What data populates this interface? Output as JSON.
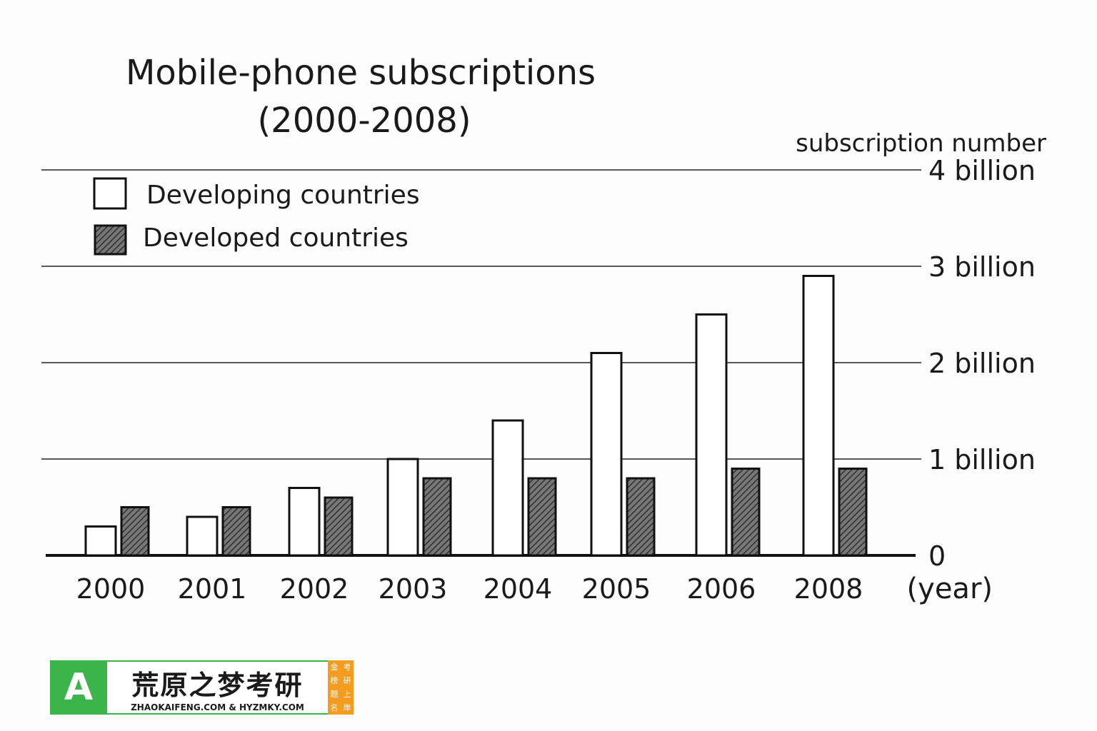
{
  "chart_data": {
    "type": "bar",
    "title": "Mobile-phone subscriptions",
    "subtitle": "(2000-2008)",
    "ylabel": "subscription number",
    "xlabel": "(year)",
    "categories": [
      "2000",
      "2001",
      "2002",
      "2003",
      "2004",
      "2005",
      "2006",
      "2008"
    ],
    "series": [
      {
        "name": "Developing countries",
        "values": [
          0.3,
          0.4,
          0.7,
          1.0,
          1.4,
          2.1,
          2.5,
          2.9
        ],
        "color": "#ffffff"
      },
      {
        "name": "Developed countries",
        "values": [
          0.5,
          0.5,
          0.6,
          0.8,
          0.8,
          0.8,
          0.9,
          0.9
        ],
        "color": "#555555"
      }
    ],
    "ylim": [
      0,
      4
    ],
    "yticks": [
      0,
      1,
      2,
      3,
      4
    ],
    "ytick_labels": [
      "0",
      "1 billion",
      "2 billion",
      "3 billion",
      "4 billion"
    ],
    "unit": "billion",
    "grid": true,
    "legend": "top-left"
  },
  "watermark": {
    "brand_cn": "荒原之梦考研",
    "brand_en": "ZHAOKAIFENG.COM & HYZMKY.COM",
    "side": [
      "金",
      "考",
      "榜",
      "研",
      "题",
      "上",
      "名",
      "岸"
    ],
    "logo_letter": "A"
  }
}
